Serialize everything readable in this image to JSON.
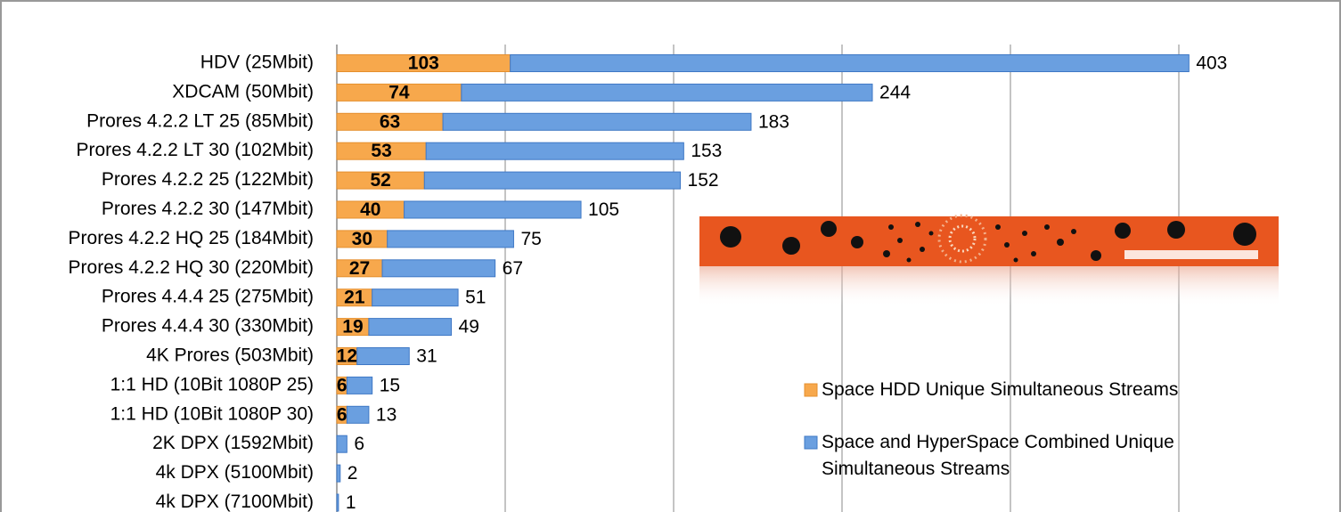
{
  "chart_data": {
    "type": "bar",
    "orientation": "horizontal",
    "stacked": true,
    "categories": [
      "HDV (25Mbit)",
      "XDCAM (50Mbit)",
      "Prores 4.2.2 LT 25 (85Mbit)",
      "Prores 4.2.2 LT 30 (102Mbit)",
      "Prores 4.2.2 25 (122Mbit)",
      "Prores 4.2.2 30 (147Mbit)",
      "Prores 4.2.2 HQ 25 (184Mbit)",
      "Prores 4.2.2 HQ 30 (220Mbit)",
      "Prores 4.4.4 25 (275Mbit)",
      "Prores 4.4.4 30 (330Mbit)",
      "4K Prores (503Mbit)",
      "1:1 HD (10Bit 1080P 25)",
      "1:1 HD (10Bit 1080P 30)",
      "2K DPX (1592Mbit)",
      "4k DPX (5100Mbit)",
      "4k DPX (7100Mbit)"
    ],
    "series": [
      {
        "name": "Space HDD Unique Simultaneous Streams",
        "color": "#f7a84c",
        "values": [
          103,
          74,
          63,
          53,
          52,
          40,
          30,
          27,
          21,
          19,
          12,
          6,
          6,
          null,
          null,
          null
        ]
      },
      {
        "name": "Space and HyperSpace Combined Unique Simultaneous Streams",
        "color": "#6a9fe0",
        "values": [
          403,
          244,
          183,
          153,
          152,
          105,
          75,
          67,
          51,
          49,
          31,
          15,
          13,
          6,
          2,
          1
        ]
      }
    ],
    "xlim": [
      0,
      600
    ],
    "xticks": [
      0,
      100,
      200,
      300,
      400,
      500
    ],
    "grid": true
  }
}
